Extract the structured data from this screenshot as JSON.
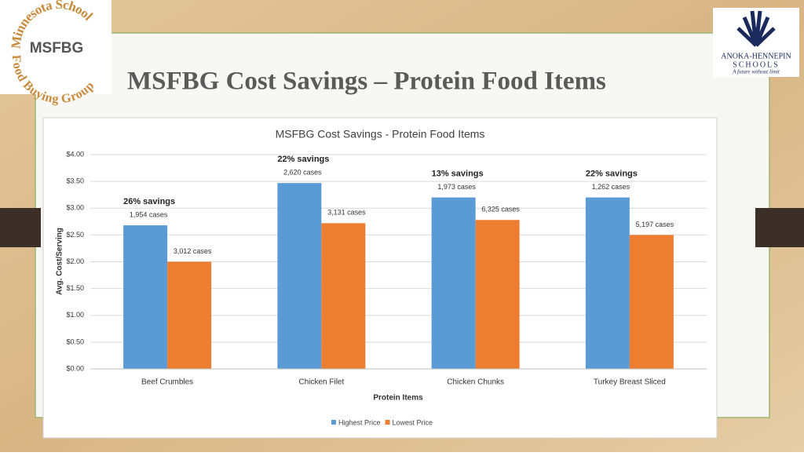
{
  "slide": {
    "title": "MSFBG Cost Savings – Protein Food Items",
    "left_logo": {
      "arc_top": "Minnesota School",
      "arc_bottom": "Food Buying Group",
      "center": "MSFBG"
    },
    "right_logo": {
      "name": "ANOKA-HENNEPIN",
      "sub": "SCHOOLS",
      "tagline": "A future without limit"
    }
  },
  "chart_data": {
    "type": "bar",
    "title": "MSFBG Cost Savings - Protein Food Items",
    "x_label": "Protein Items",
    "y_label": "Avg. Cost/Serving",
    "categories": [
      "Beef Crumbles",
      "Chicken Filet",
      "Chicken Chunks",
      "Turkey Breast Sliced"
    ],
    "annotations": [
      "26% savings",
      "22% savings",
      "13% savings",
      "22% savings"
    ],
    "series": [
      {
        "name": "Highest Price",
        "color": "#5b9bd5",
        "values": [
          2.68,
          3.47,
          3.2,
          3.2
        ],
        "labels": [
          "1,954 cases",
          "2,620 cases",
          "1,973 cases",
          "1,262 cases"
        ]
      },
      {
        "name": "Lowest Price",
        "color": "#ed7d31",
        "values": [
          2.0,
          2.72,
          2.78,
          2.5
        ],
        "labels": [
          "3,012 cases",
          "3,131 cases",
          "6,325 cases",
          "5,197 cases"
        ]
      }
    ],
    "ylim": [
      0,
      4
    ],
    "yticks": [
      {
        "value": 0,
        "label": "$0.00"
      },
      {
        "value": 0.5,
        "label": "$0.50"
      },
      {
        "value": 1,
        "label": "$1.00"
      },
      {
        "value": 1.5,
        "label": "$1.50"
      },
      {
        "value": 2,
        "label": "$2.00"
      },
      {
        "value": 2.5,
        "label": "$2.50"
      },
      {
        "value": 3,
        "label": "$3.00"
      },
      {
        "value": 3.5,
        "label": "$3.50"
      },
      {
        "value": 4,
        "label": "$4.00"
      }
    ],
    "grid": true,
    "legend": "bottom"
  }
}
